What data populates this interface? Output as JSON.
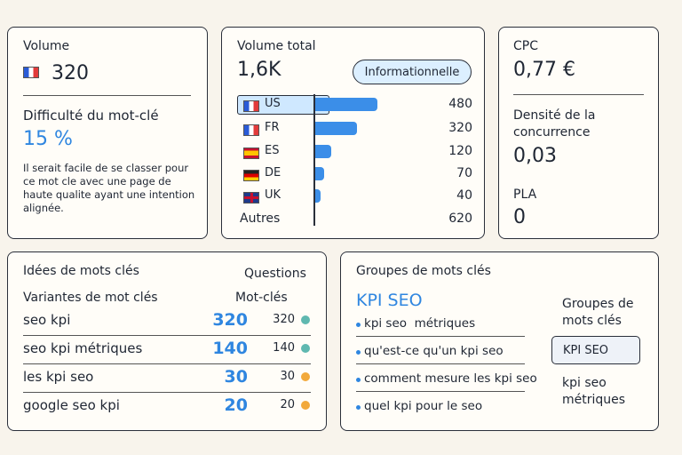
{
  "volume": {
    "label": "Volume",
    "value": "320"
  },
  "difficulty": {
    "label": "Difficulté du mot-clé",
    "value": "15 %",
    "text": "Il serait facile de se classer pour ce mot cle avec une page de haute qualite ayant une intention alignée."
  },
  "volume_total": {
    "label": "Volume total",
    "value": "1,6K",
    "badge": "Informationnelle",
    "countries": [
      {
        "code": "US",
        "value": 480
      },
      {
        "code": "FR",
        "value": 320
      },
      {
        "code": "ES",
        "value": 120
      },
      {
        "code": "DE",
        "value": 70
      },
      {
        "code": "UK",
        "value": 40
      }
    ],
    "other": {
      "label": "Autres",
      "value": 620
    }
  },
  "cpc": {
    "label": "CPC",
    "value": "0,77 €"
  },
  "competition": {
    "label": "Densité de la concurrence",
    "value": "0,03"
  },
  "pla": {
    "label": "PLA",
    "value": "0"
  },
  "ideas": {
    "title": "Idées de mots clés",
    "tab": "Questions",
    "col1": "Variantes de mot clés",
    "col2": "Mot-clés",
    "rows": [
      {
        "keyword": "seo kpi",
        "volume": 320,
        "count": 320
      },
      {
        "keyword": "seo kpi métriques",
        "volume": 140,
        "count": 140
      },
      {
        "keyword": "les kpi seo",
        "volume": 30,
        "count": 30
      },
      {
        "keyword": "google seo kpi",
        "volume": 20,
        "count": 20
      }
    ]
  },
  "groups": {
    "title": "Groupes de mots clés",
    "heading": "KPI SEO",
    "items": [
      "kpi seo  métriques",
      "qu'est-ce qu'un kpi seo",
      "comment mesure les kpi seo",
      "quel kpi pour le seo"
    ],
    "side_title": "Groupes de mots clés",
    "selected": "KPI SEO",
    "other": "kpi seo métriques"
  }
}
